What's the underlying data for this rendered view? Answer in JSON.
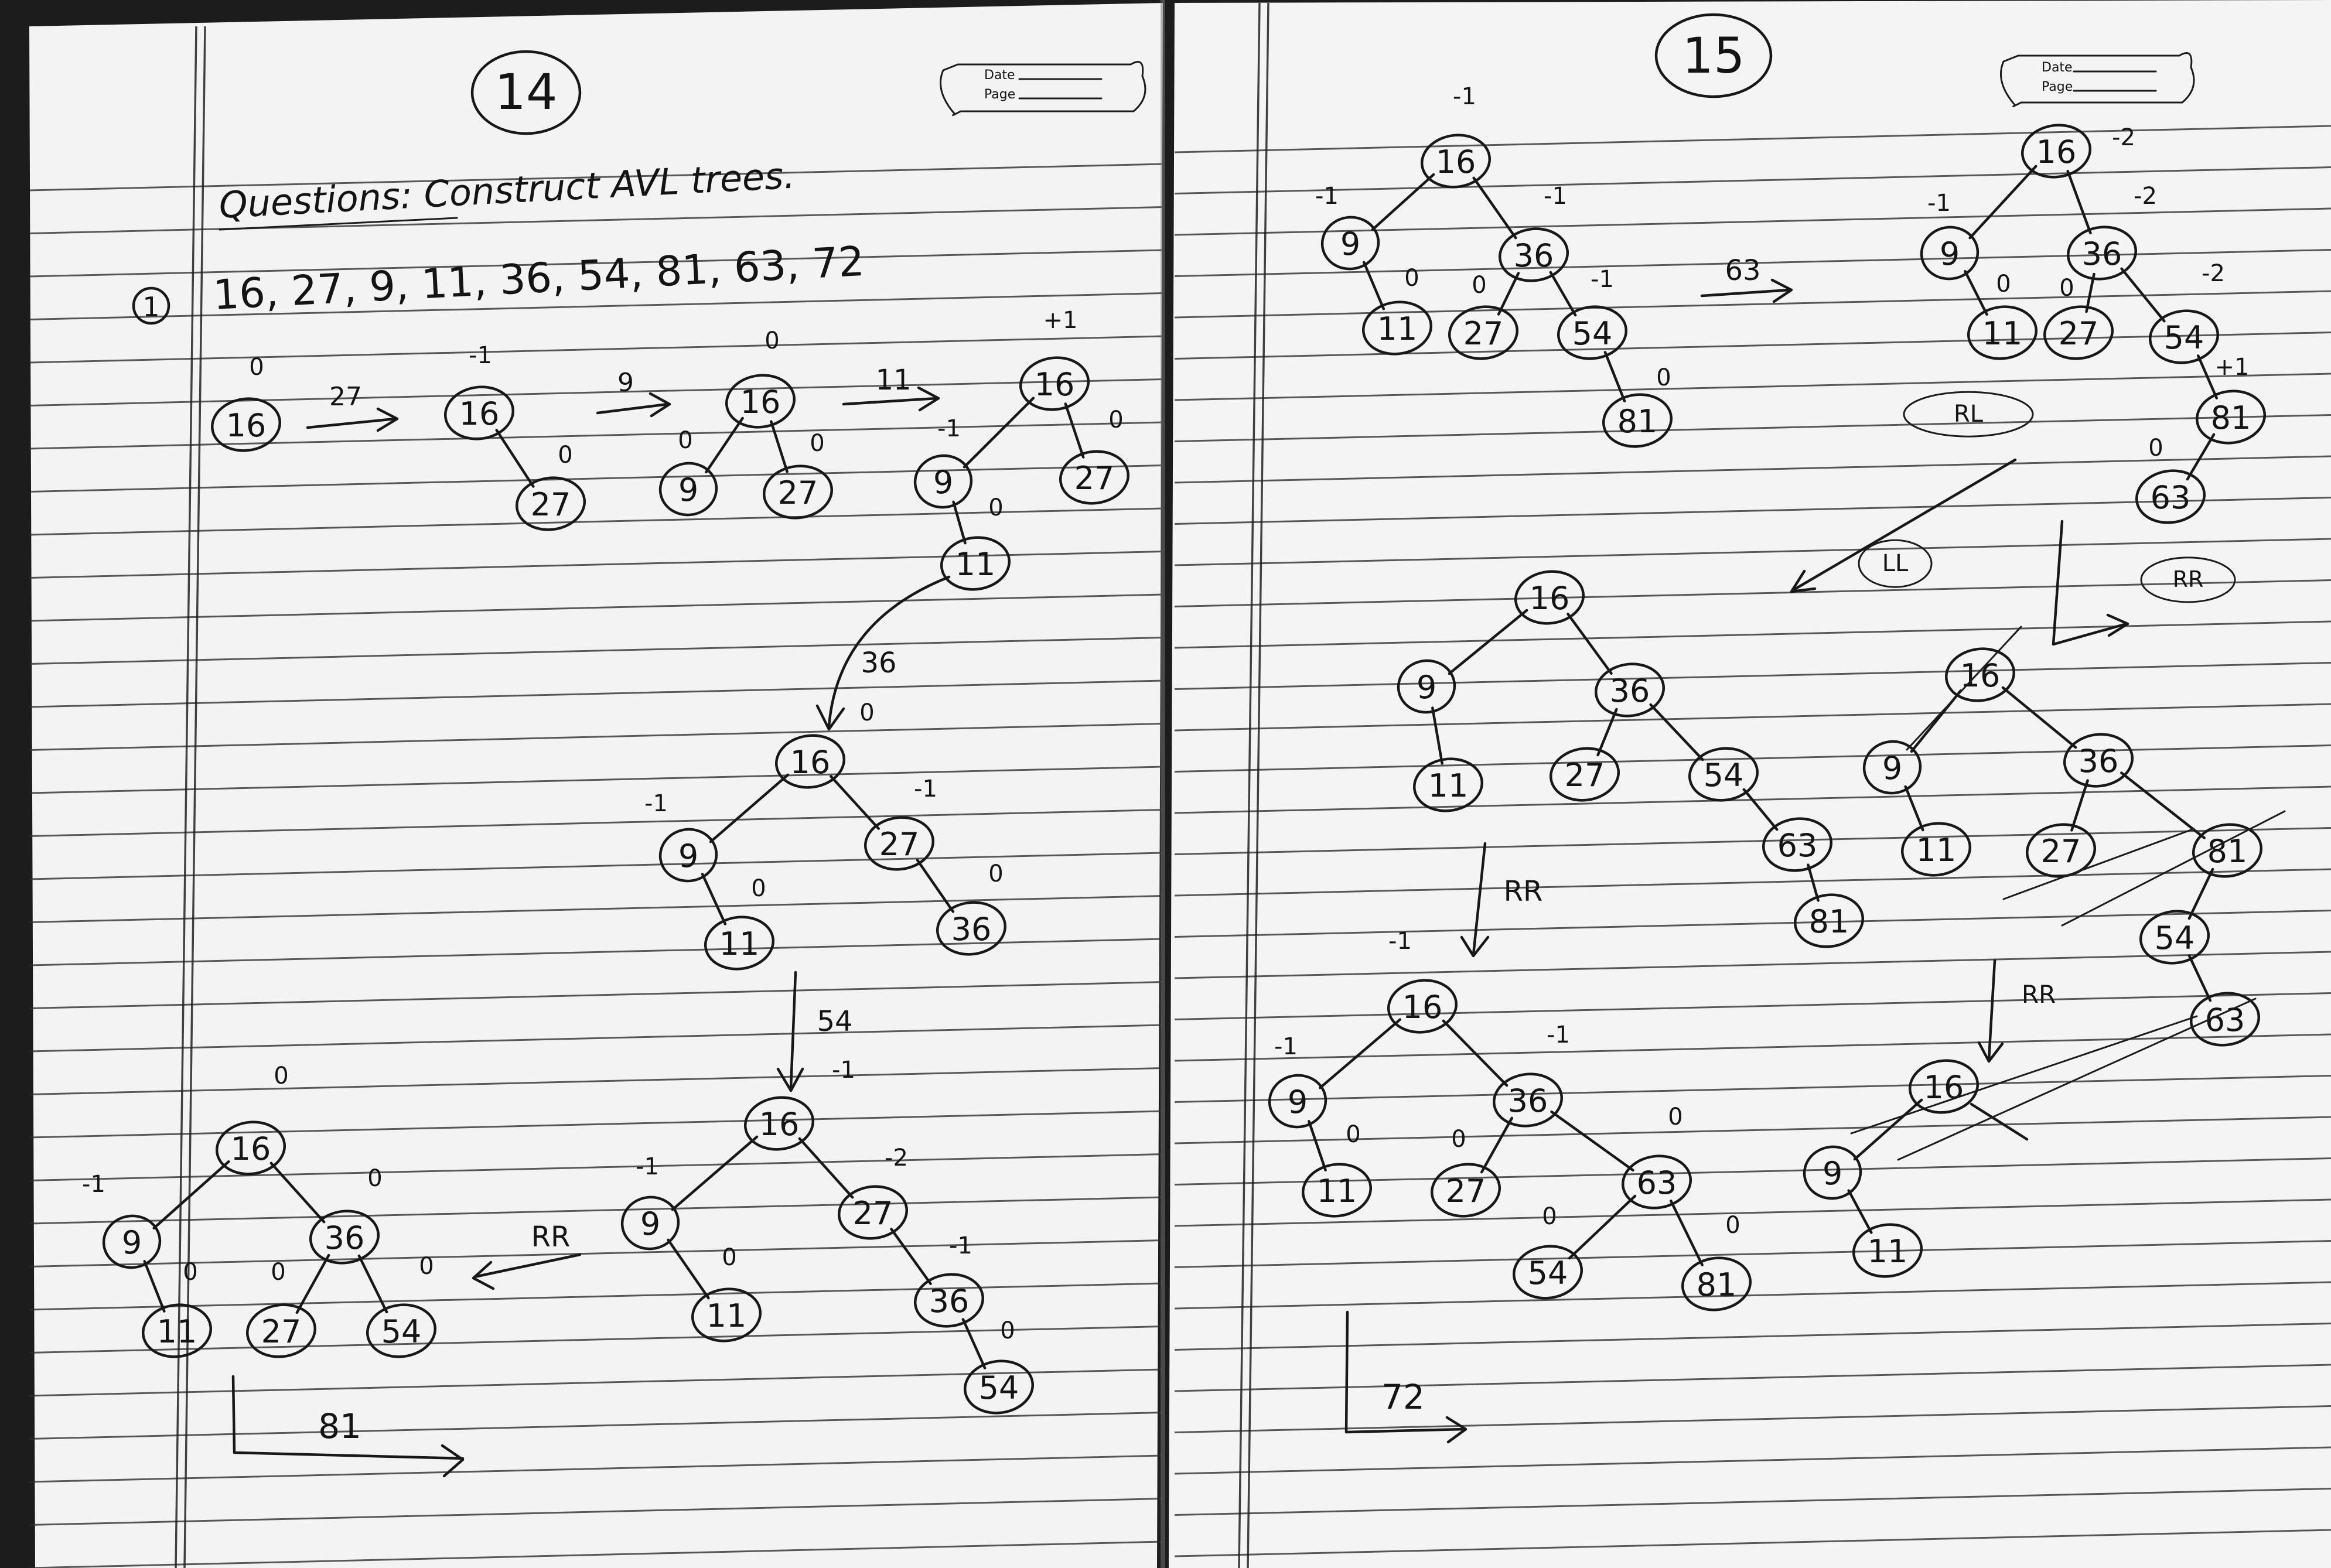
{
  "pages": [
    {
      "page_number": "14",
      "header_box": {
        "date_label": "Date",
        "page_label": "Page"
      },
      "heading": "Questions: Construct AVL trees.",
      "question_marker": "1",
      "sequence": "16, 27, 9, 11, 36, 54, 81, 63, 72",
      "steps": [
        {
          "insert_label": "27",
          "rotation": ""
        },
        {
          "insert_label": "9",
          "rotation": ""
        },
        {
          "insert_label": "11",
          "rotation": ""
        },
        {
          "insert_label": "36",
          "rotation": ""
        },
        {
          "insert_label": "54",
          "rotation": ""
        },
        {
          "insert_label": "",
          "rotation": "RR"
        },
        {
          "insert_label": "81",
          "rotation": ""
        }
      ],
      "trees": [
        {
          "nodes": [
            {
              "key": "16",
              "bf": "0"
            }
          ]
        },
        {
          "nodes": [
            {
              "key": "16",
              "bf": "-1"
            },
            {
              "key": "27",
              "bf": "0"
            }
          ]
        },
        {
          "nodes": [
            {
              "key": "16",
              "bf": "0"
            },
            {
              "key": "9",
              "bf": "0"
            },
            {
              "key": "27",
              "bf": "0"
            }
          ]
        },
        {
          "nodes": [
            {
              "key": "16",
              "bf": "+1"
            },
            {
              "key": "9",
              "bf": "-1"
            },
            {
              "key": "27",
              "bf": "0"
            },
            {
              "key": "11",
              "bf": "0"
            }
          ]
        },
        {
          "nodes": [
            {
              "key": "16",
              "bf": "0"
            },
            {
              "key": "9",
              "bf": "-1"
            },
            {
              "key": "27",
              "bf": "-1"
            },
            {
              "key": "11",
              "bf": "0"
            },
            {
              "key": "36",
              "bf": "0"
            }
          ]
        },
        {
          "nodes": [
            {
              "key": "16",
              "bf": "-1"
            },
            {
              "key": "9",
              "bf": "-1"
            },
            {
              "key": "27",
              "bf": "-2"
            },
            {
              "key": "11",
              "bf": "0"
            },
            {
              "key": "36",
              "bf": "-1"
            },
            {
              "key": "54",
              "bf": "0"
            }
          ]
        },
        {
          "nodes": [
            {
              "key": "16",
              "bf": "0"
            },
            {
              "key": "9",
              "bf": "-1"
            },
            {
              "key": "36",
              "bf": "0"
            },
            {
              "key": "11",
              "bf": "0"
            },
            {
              "key": "27",
              "bf": "0"
            },
            {
              "key": "54",
              "bf": "0"
            }
          ]
        }
      ]
    },
    {
      "page_number": "15",
      "header_box": {
        "date_label": "Date",
        "page_label": "Page"
      },
      "steps": [
        {
          "insert_label": "63",
          "rotation": ""
        },
        {
          "insert_label": "",
          "rotation": "RL"
        },
        {
          "insert_label": "",
          "rotation": "LL"
        },
        {
          "insert_label": "",
          "rotation": "RR"
        },
        {
          "insert_label": "",
          "rotation": "RR"
        },
        {
          "insert_label": "",
          "rotation": "RR"
        },
        {
          "insert_label": "72",
          "rotation": ""
        }
      ],
      "trees": [
        {
          "nodes": [
            {
              "key": "16",
              "bf": "-1"
            },
            {
              "key": "9",
              "bf": "-1"
            },
            {
              "key": "36",
              "bf": "-1"
            },
            {
              "key": "11",
              "bf": "0"
            },
            {
              "key": "27",
              "bf": "0"
            },
            {
              "key": "54",
              "bf": "-1"
            },
            {
              "key": "81",
              "bf": "0"
            }
          ]
        },
        {
          "nodes": [
            {
              "key": "16",
              "bf": "-2"
            },
            {
              "key": "9",
              "bf": "-1"
            },
            {
              "key": "36",
              "bf": "-2"
            },
            {
              "key": "11",
              "bf": "0"
            },
            {
              "key": "27",
              "bf": "0"
            },
            {
              "key": "54",
              "bf": "-2"
            },
            {
              "key": "81",
              "bf": "+1"
            },
            {
              "key": "63",
              "bf": "0"
            }
          ]
        },
        {
          "nodes": [
            {
              "key": "16",
              "bf": ""
            },
            {
              "key": "9",
              "bf": ""
            },
            {
              "key": "36",
              "bf": ""
            },
            {
              "key": "11",
              "bf": ""
            },
            {
              "key": "27",
              "bf": ""
            },
            {
              "key": "54",
              "bf": ""
            },
            {
              "key": "63",
              "bf": ""
            },
            {
              "key": "81",
              "bf": ""
            }
          ]
        },
        {
          "nodes": [
            {
              "key": "16",
              "bf": ""
            },
            {
              "key": "9",
              "bf": ""
            },
            {
              "key": "36",
              "bf": ""
            },
            {
              "key": "11",
              "bf": ""
            },
            {
              "key": "27",
              "bf": ""
            },
            {
              "key": "81",
              "bf": ""
            },
            {
              "key": "54",
              "bf": ""
            },
            {
              "key": "63",
              "bf": ""
            }
          ]
        },
        {
          "nodes": [
            {
              "key": "16",
              "bf": "-1"
            },
            {
              "key": "9",
              "bf": "-1"
            },
            {
              "key": "36",
              "bf": "-1"
            },
            {
              "key": "11",
              "bf": "0"
            },
            {
              "key": "27",
              "bf": "0"
            },
            {
              "key": "63",
              "bf": "0"
            },
            {
              "key": "54",
              "bf": "0"
            },
            {
              "key": "81",
              "bf": "0"
            }
          ]
        },
        {
          "nodes": [
            {
              "key": "16",
              "bf": ""
            },
            {
              "key": "9",
              "bf": ""
            },
            {
              "key": "11",
              "bf": ""
            }
          ]
        }
      ]
    }
  ]
}
